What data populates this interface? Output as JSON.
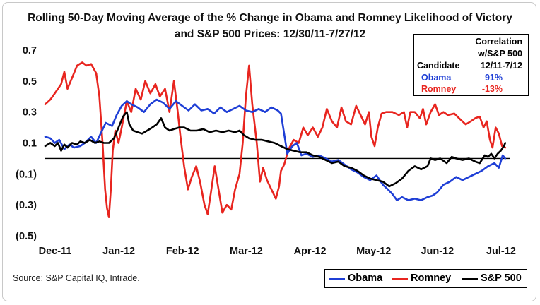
{
  "chart_data": {
    "type": "line",
    "title_line1": "Rolling 50-Day Moving Average of the % Change in Obama and Romney Likelihood of Victory",
    "title_line2": "and S&P 500 Prices: 12/30/11-7/27/12",
    "ylim": [
      -0.55,
      0.75
    ],
    "y_ticks": [
      0.7,
      0.5,
      0.3,
      0.1,
      -0.1,
      -0.3,
      -0.5
    ],
    "y_tick_labels": [
      "0.7",
      "0.5",
      "0.3",
      "0.1",
      "(0.1)",
      "(0.3)",
      "(0.5)"
    ],
    "x_ticks": [
      0,
      1,
      2,
      3,
      4,
      5,
      6,
      7
    ],
    "x_tick_labels": [
      "Dec-11",
      "Jan-12",
      "Feb-12",
      "Mar-12",
      "Apr-12",
      "May-12",
      "Jun-12",
      "Jul-12"
    ],
    "zero_line": 0,
    "grid": false,
    "legend_position": "bottom-right",
    "series": [
      {
        "name": "Obama",
        "color": "#1f3fd6",
        "points": [
          [
            0.0,
            0.14
          ],
          [
            0.08,
            0.13
          ],
          [
            0.15,
            0.1
          ],
          [
            0.22,
            0.12
          ],
          [
            0.3,
            0.06
          ],
          [
            0.38,
            0.09
          ],
          [
            0.45,
            0.07
          ],
          [
            0.55,
            0.08
          ],
          [
            0.62,
            0.1
          ],
          [
            0.72,
            0.14
          ],
          [
            0.8,
            0.1
          ],
          [
            0.88,
            0.17
          ],
          [
            0.95,
            0.23
          ],
          [
            1.05,
            0.21
          ],
          [
            1.12,
            0.28
          ],
          [
            1.2,
            0.34
          ],
          [
            1.28,
            0.37
          ],
          [
            1.35,
            0.35
          ],
          [
            1.45,
            0.33
          ],
          [
            1.55,
            0.3
          ],
          [
            1.65,
            0.35
          ],
          [
            1.75,
            0.38
          ],
          [
            1.85,
            0.36
          ],
          [
            1.95,
            0.32
          ],
          [
            2.05,
            0.37
          ],
          [
            2.15,
            0.34
          ],
          [
            2.25,
            0.31
          ],
          [
            2.35,
            0.35
          ],
          [
            2.45,
            0.31
          ],
          [
            2.55,
            0.32
          ],
          [
            2.65,
            0.29
          ],
          [
            2.75,
            0.33
          ],
          [
            2.85,
            0.3
          ],
          [
            2.95,
            0.32
          ],
          [
            3.05,
            0.34
          ],
          [
            3.15,
            0.31
          ],
          [
            3.25,
            0.3
          ],
          [
            3.35,
            0.32
          ],
          [
            3.45,
            0.3
          ],
          [
            3.55,
            0.33
          ],
          [
            3.65,
            0.31
          ],
          [
            3.7,
            0.29
          ],
          [
            3.75,
            0.16
          ],
          [
            3.8,
            0.03
          ],
          [
            3.88,
            0.08
          ],
          [
            3.95,
            0.1
          ],
          [
            4.02,
            0.02
          ],
          [
            4.1,
            0.03
          ],
          [
            4.2,
            0.01
          ],
          [
            4.3,
            0.02
          ],
          [
            4.4,
            0.0
          ],
          [
            4.5,
            -0.02
          ],
          [
            4.6,
            -0.01
          ],
          [
            4.7,
            -0.04
          ],
          [
            4.8,
            -0.07
          ],
          [
            4.9,
            -0.09
          ],
          [
            5.0,
            -0.12
          ],
          [
            5.1,
            -0.14
          ],
          [
            5.2,
            -0.11
          ],
          [
            5.3,
            -0.17
          ],
          [
            5.38,
            -0.2
          ],
          [
            5.45,
            -0.23
          ],
          [
            5.52,
            -0.27
          ],
          [
            5.6,
            -0.25
          ],
          [
            5.7,
            -0.27
          ],
          [
            5.8,
            -0.26
          ],
          [
            5.9,
            -0.27
          ],
          [
            6.0,
            -0.25
          ],
          [
            6.08,
            -0.24
          ],
          [
            6.15,
            -0.22
          ],
          [
            6.25,
            -0.17
          ],
          [
            6.35,
            -0.15
          ],
          [
            6.45,
            -0.12
          ],
          [
            6.55,
            -0.14
          ],
          [
            6.65,
            -0.12
          ],
          [
            6.75,
            -0.1
          ],
          [
            6.85,
            -0.08
          ],
          [
            6.95,
            -0.05
          ],
          [
            7.05,
            -0.03
          ],
          [
            7.12,
            -0.06
          ],
          [
            7.18,
            0.02
          ],
          [
            7.22,
            0.0
          ]
        ]
      },
      {
        "name": "Romney",
        "color": "#e8251f",
        "points": [
          [
            0.0,
            0.35
          ],
          [
            0.08,
            0.38
          ],
          [
            0.15,
            0.42
          ],
          [
            0.25,
            0.48
          ],
          [
            0.3,
            0.56
          ],
          [
            0.35,
            0.45
          ],
          [
            0.42,
            0.52
          ],
          [
            0.5,
            0.6
          ],
          [
            0.58,
            0.62
          ],
          [
            0.65,
            0.6
          ],
          [
            0.72,
            0.61
          ],
          [
            0.8,
            0.55
          ],
          [
            0.85,
            0.4
          ],
          [
            0.9,
            0.1
          ],
          [
            0.94,
            -0.2
          ],
          [
            0.97,
            -0.32
          ],
          [
            1.0,
            -0.38
          ],
          [
            1.03,
            -0.2
          ],
          [
            1.06,
            0.05
          ],
          [
            1.1,
            0.18
          ],
          [
            1.15,
            0.1
          ],
          [
            1.2,
            0.2
          ],
          [
            1.28,
            0.37
          ],
          [
            1.35,
            0.3
          ],
          [
            1.42,
            0.45
          ],
          [
            1.5,
            0.38
          ],
          [
            1.57,
            0.5
          ],
          [
            1.65,
            0.42
          ],
          [
            1.73,
            0.48
          ],
          [
            1.8,
            0.4
          ],
          [
            1.88,
            0.45
          ],
          [
            1.95,
            0.3
          ],
          [
            2.02,
            0.5
          ],
          [
            2.08,
            0.3
          ],
          [
            2.12,
            0.15
          ],
          [
            2.18,
            -0.05
          ],
          [
            2.24,
            -0.2
          ],
          [
            2.3,
            -0.12
          ],
          [
            2.37,
            -0.05
          ],
          [
            2.43,
            -0.15
          ],
          [
            2.5,
            -0.3
          ],
          [
            2.55,
            -0.36
          ],
          [
            2.6,
            -0.22
          ],
          [
            2.66,
            -0.05
          ],
          [
            2.72,
            -0.2
          ],
          [
            2.78,
            -0.35
          ],
          [
            2.85,
            -0.3
          ],
          [
            2.92,
            -0.33
          ],
          [
            2.98,
            -0.2
          ],
          [
            3.05,
            -0.1
          ],
          [
            3.1,
            0.1
          ],
          [
            3.15,
            0.4
          ],
          [
            3.2,
            0.6
          ],
          [
            3.25,
            0.35
          ],
          [
            3.32,
            0.1
          ],
          [
            3.37,
            -0.15
          ],
          [
            3.42,
            -0.06
          ],
          [
            3.48,
            -0.14
          ],
          [
            3.55,
            -0.2
          ],
          [
            3.62,
            -0.26
          ],
          [
            3.67,
            -0.18
          ],
          [
            3.7,
            -0.08
          ],
          [
            3.75,
            -0.04
          ],
          [
            3.82,
            0.06
          ],
          [
            3.9,
            0.12
          ],
          [
            3.98,
            0.1
          ],
          [
            4.05,
            0.2
          ],
          [
            4.12,
            0.15
          ],
          [
            4.2,
            0.2
          ],
          [
            4.28,
            0.14
          ],
          [
            4.35,
            0.2
          ],
          [
            4.42,
            0.32
          ],
          [
            4.5,
            0.24
          ],
          [
            4.58,
            0.2
          ],
          [
            4.65,
            0.33
          ],
          [
            4.72,
            0.24
          ],
          [
            4.8,
            0.22
          ],
          [
            4.88,
            0.34
          ],
          [
            4.95,
            0.28
          ],
          [
            5.02,
            0.22
          ],
          [
            5.08,
            0.3
          ],
          [
            5.12,
            0.14
          ],
          [
            5.17,
            0.08
          ],
          [
            5.22,
            0.2
          ],
          [
            5.28,
            0.29
          ],
          [
            5.35,
            0.3
          ],
          [
            5.45,
            0.3
          ],
          [
            5.55,
            0.28
          ],
          [
            5.63,
            0.3
          ],
          [
            5.68,
            0.2
          ],
          [
            5.73,
            0.3
          ],
          [
            5.8,
            0.3
          ],
          [
            5.88,
            0.26
          ],
          [
            5.93,
            0.32
          ],
          [
            5.98,
            0.22
          ],
          [
            6.05,
            0.3
          ],
          [
            6.12,
            0.35
          ],
          [
            6.18,
            0.28
          ],
          [
            6.25,
            0.3
          ],
          [
            6.32,
            0.28
          ],
          [
            6.42,
            0.29
          ],
          [
            6.52,
            0.25
          ],
          [
            6.6,
            0.22
          ],
          [
            6.68,
            0.24
          ],
          [
            6.75,
            0.26
          ],
          [
            6.82,
            0.27
          ],
          [
            6.88,
            0.2
          ],
          [
            6.93,
            0.24
          ],
          [
            6.98,
            0.12
          ],
          [
            7.02,
            0.07
          ],
          [
            7.07,
            0.2
          ],
          [
            7.12,
            0.16
          ],
          [
            7.17,
            0.08
          ],
          [
            7.22,
            0.07
          ]
        ]
      },
      {
        "name": "S&P 500",
        "color": "#000000",
        "points": [
          [
            0.0,
            0.08
          ],
          [
            0.08,
            0.1
          ],
          [
            0.15,
            0.08
          ],
          [
            0.2,
            0.1
          ],
          [
            0.25,
            0.05
          ],
          [
            0.3,
            0.09
          ],
          [
            0.35,
            0.07
          ],
          [
            0.42,
            0.1
          ],
          [
            0.5,
            0.09
          ],
          [
            0.55,
            0.11
          ],
          [
            0.62,
            0.1
          ],
          [
            0.7,
            0.12
          ],
          [
            0.78,
            0.1
          ],
          [
            0.85,
            0.11
          ],
          [
            0.92,
            0.1
          ],
          [
            1.0,
            0.1
          ],
          [
            1.08,
            0.13
          ],
          [
            1.15,
            0.2
          ],
          [
            1.22,
            0.27
          ],
          [
            1.28,
            0.3
          ],
          [
            1.32,
            0.22
          ],
          [
            1.38,
            0.18
          ],
          [
            1.45,
            0.17
          ],
          [
            1.52,
            0.16
          ],
          [
            1.6,
            0.18
          ],
          [
            1.68,
            0.2
          ],
          [
            1.75,
            0.22
          ],
          [
            1.82,
            0.26
          ],
          [
            1.88,
            0.2
          ],
          [
            1.95,
            0.18
          ],
          [
            2.02,
            0.19
          ],
          [
            2.1,
            0.2
          ],
          [
            2.18,
            0.2
          ],
          [
            2.28,
            0.18
          ],
          [
            2.38,
            0.18
          ],
          [
            2.48,
            0.19
          ],
          [
            2.58,
            0.17
          ],
          [
            2.68,
            0.18
          ],
          [
            2.78,
            0.17
          ],
          [
            2.88,
            0.18
          ],
          [
            2.98,
            0.17
          ],
          [
            3.05,
            0.18
          ],
          [
            3.12,
            0.15
          ],
          [
            3.2,
            0.13
          ],
          [
            3.3,
            0.12
          ],
          [
            3.4,
            0.12
          ],
          [
            3.5,
            0.11
          ],
          [
            3.6,
            0.1
          ],
          [
            3.7,
            0.08
          ],
          [
            3.8,
            0.06
          ],
          [
            3.9,
            0.05
          ],
          [
            4.0,
            0.04
          ],
          [
            4.1,
            0.04
          ],
          [
            4.2,
            0.02
          ],
          [
            4.3,
            0.01
          ],
          [
            4.4,
            -0.01
          ],
          [
            4.5,
            -0.03
          ],
          [
            4.6,
            -0.02
          ],
          [
            4.7,
            -0.05
          ],
          [
            4.8,
            -0.06
          ],
          [
            4.9,
            -0.08
          ],
          [
            5.0,
            -0.11
          ],
          [
            5.1,
            -0.13
          ],
          [
            5.2,
            -0.14
          ],
          [
            5.3,
            -0.15
          ],
          [
            5.4,
            -0.18
          ],
          [
            5.5,
            -0.16
          ],
          [
            5.6,
            -0.13
          ],
          [
            5.7,
            -0.08
          ],
          [
            5.8,
            -0.05
          ],
          [
            5.9,
            -0.07
          ],
          [
            6.0,
            -0.05
          ],
          [
            6.05,
            0.0
          ],
          [
            6.12,
            -0.01
          ],
          [
            6.2,
            0.0
          ],
          [
            6.3,
            -0.03
          ],
          [
            6.38,
            0.01
          ],
          [
            6.45,
            0.0
          ],
          [
            6.55,
            -0.01
          ],
          [
            6.65,
            0.0
          ],
          [
            6.75,
            -0.02
          ],
          [
            6.82,
            -0.03
          ],
          [
            6.9,
            0.02
          ],
          [
            6.95,
            0.01
          ],
          [
            7.0,
            0.03
          ],
          [
            7.05,
            0.0
          ],
          [
            7.1,
            0.03
          ],
          [
            7.15,
            0.05
          ],
          [
            7.2,
            0.08
          ],
          [
            7.22,
            0.1
          ]
        ]
      }
    ],
    "correlation_table": {
      "header_line1": "Correlation",
      "header_line2": "w/S&P 500",
      "candidate_label": "Candidate",
      "period_label": "12/11-7/12",
      "rows": [
        {
          "candidate": "Obama",
          "value": "91%",
          "color": "#1f3fd6"
        },
        {
          "candidate": "Romney",
          "value": "-13%",
          "color": "#e8251f"
        }
      ]
    },
    "source": "Source: S&P Capital IQ, Intrade."
  }
}
